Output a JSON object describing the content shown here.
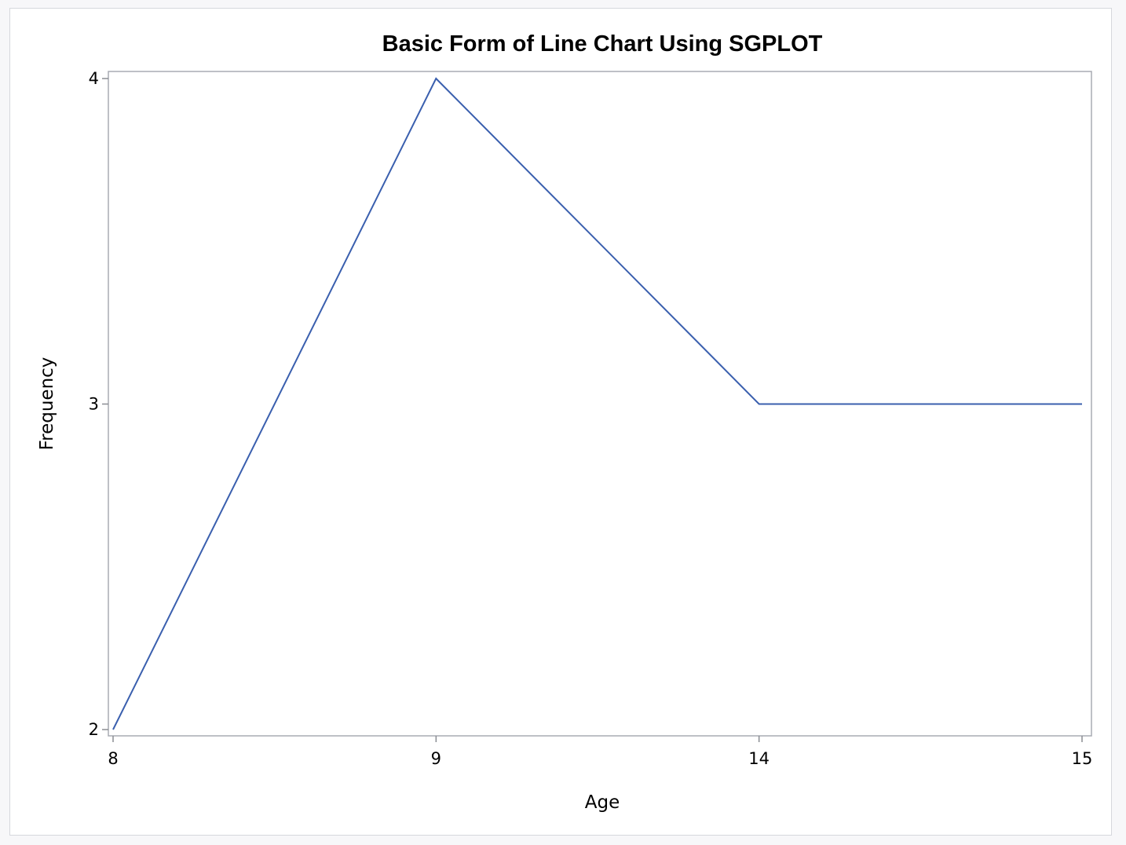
{
  "chart_data": {
    "type": "line",
    "title": "Basic Form of Line Chart Using SGPLOT",
    "xlabel": "Age",
    "ylabel": "Frequency",
    "categories": [
      "8",
      "9",
      "14",
      "15"
    ],
    "series": [
      {
        "values": [
          2,
          4,
          3,
          3
        ]
      }
    ],
    "ylim": [
      2,
      4
    ],
    "yticks": [
      "2",
      "3",
      "4"
    ],
    "grid": false,
    "legend": "none",
    "colors": {
      "line": "#3a5fae",
      "frame": "#a9acb3",
      "tick": "#8a8d93"
    }
  }
}
